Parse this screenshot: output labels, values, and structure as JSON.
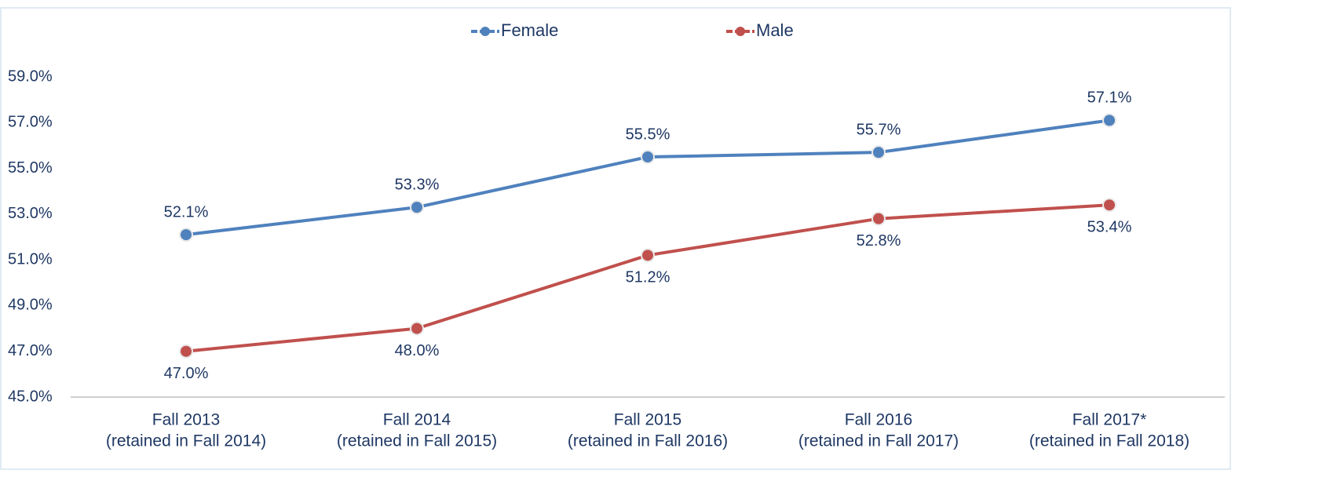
{
  "chart_data": {
    "type": "line",
    "categories": [
      [
        "Fall 2013",
        "(retained in Fall 2014)"
      ],
      [
        "Fall 2014",
        "(retained in Fall 2015)"
      ],
      [
        "Fall 2015",
        "(retained in Fall 2016)"
      ],
      [
        "Fall 2016",
        "(retained in Fall 2017)"
      ],
      [
        "Fall 2017*",
        "(retained in Fall 2018)"
      ]
    ],
    "series": [
      {
        "name": "Female",
        "color": "#4f81bd",
        "values": [
          52.1,
          53.3,
          55.5,
          55.7,
          57.1
        ],
        "value_labels": [
          "52.1%",
          "53.3%",
          "55.5%",
          "55.7%",
          "57.1%"
        ]
      },
      {
        "name": "Male",
        "color": "#c0504d",
        "values": [
          47.0,
          48.0,
          51.2,
          52.8,
          53.4
        ],
        "value_labels": [
          "47.0%",
          "48.0%",
          "51.2%",
          "52.8%",
          "53.4%"
        ]
      }
    ],
    "ylim": [
      45,
      59
    ],
    "yticks": [
      {
        "value": 45,
        "label": "45.0%"
      },
      {
        "value": 47,
        "label": "47.0%"
      },
      {
        "value": 49,
        "label": "49.0%"
      },
      {
        "value": 51,
        "label": "51.0%"
      },
      {
        "value": 53,
        "label": "53.0%"
      },
      {
        "value": 55,
        "label": "55.0%"
      },
      {
        "value": 57,
        "label": "57.0%"
      },
      {
        "value": 59,
        "label": "59.0%"
      }
    ],
    "legend": "top"
  }
}
